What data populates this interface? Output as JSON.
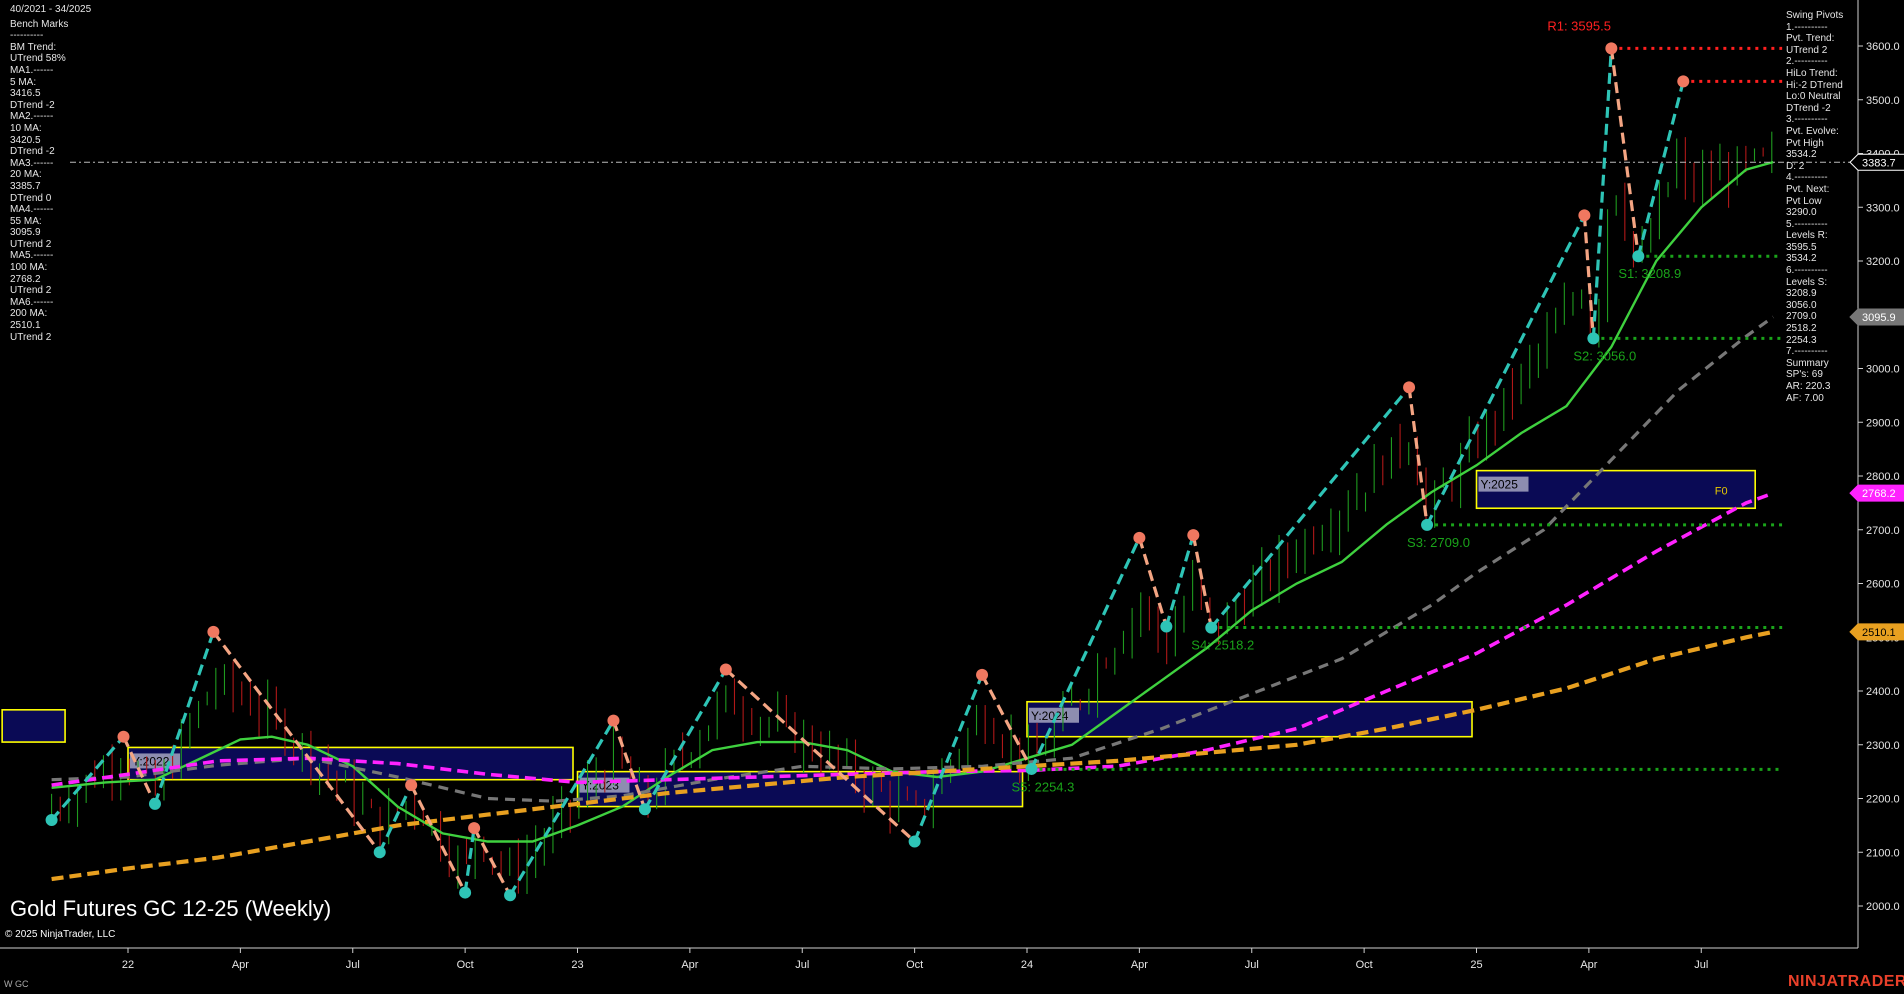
{
  "header": {
    "date_range": "40/2021 - 34/2025"
  },
  "title": "Gold Futures GC 12-25 (Weekly)",
  "copyright": "© 2025 NinjaTrader, LLC",
  "instrument": "W GC",
  "brand": "NINJATRADER",
  "left_panel": [
    "Bench Marks",
    "----------",
    "BM Trend:",
    "UTrend 58%",
    "MA1.------",
    "5 MA:",
    "3416.5",
    "DTrend -2",
    "MA2.------",
    "10 MA:",
    "3420.5",
    "DTrend -2",
    "MA3.------",
    "20 MA:",
    "3385.7",
    "DTrend 0",
    "MA4.------",
    "55 MA:",
    "3095.9",
    "UTrend 2",
    "MA5.------",
    "100 MA:",
    "2768.2",
    "UTrend 2",
    "MA6.------",
    "200 MA:",
    "2510.1",
    "UTrend 2"
  ],
  "right_panel": [
    "Swing Pivots",
    "1.----------",
    "Pvt. Trend:",
    "UTrend 2",
    "2.----------",
    "HiLo Trend:",
    "Hi:-2 DTrend",
    "Lo:0 Neutral",
    "DTrend -2",
    "3.----------",
    "Pvt. Evolve:",
    "Pvt High",
    "3534.2",
    "D: 2",
    "4.----------",
    "Pvt. Next:",
    "Pvt Low",
    "3290.0",
    "5.----------",
    "Levels R:",
    "3595.5",
    "3534.2",
    "6.----------",
    "Levels S:",
    "3208.9",
    "3056.0",
    "2709.0",
    "2518.2",
    "2254.3",
    "7.----------",
    "Summary",
    "SP's: 69",
    "AR: 220.3",
    "AF: 7.00"
  ],
  "colors": {
    "up_pivot": "#2ec4b6",
    "down_pivot": "#f4a583",
    "ma_green": "#3fd13f",
    "ma_grey": "#777777",
    "ma_magenta": "#ff22ff",
    "ma_orange": "#e8a020",
    "resistance": "#ff2020",
    "support": "#1aa31a",
    "year_box": "#ffff00",
    "year_fill": "#0a0a55",
    "brand": "#e8402a"
  },
  "chart_data": {
    "type": "line",
    "title": "Gold Futures GC 12-25 (Weekly)",
    "ylim": [
      1920,
      3660
    ],
    "y_ticks": [
      2000,
      2100,
      2200,
      2300,
      2400,
      2500,
      2600,
      2700,
      2800,
      2900,
      3000,
      3100,
      3200,
      3300,
      3400,
      3500,
      3600
    ],
    "y_tick_labels": [
      "2000.0",
      "2100.0",
      "2200.0",
      "2300.0",
      "2400.0",
      "2500.0",
      "2600.0",
      "2700.0",
      "2800.0",
      "2900.0",
      "3000.0",
      "3100.0",
      "3200.0",
      "3300.0",
      "3400.0",
      "3500.0",
      "3600.0"
    ],
    "x_range": [
      2021.83,
      2025.76
    ],
    "x_ticks": [
      {
        "label": "22",
        "t": 2022.0
      },
      {
        "label": "Apr",
        "t": 2022.25
      },
      {
        "label": "Jul",
        "t": 2022.5
      },
      {
        "label": "Oct",
        "t": 2022.75
      },
      {
        "label": "23",
        "t": 2023.0
      },
      {
        "label": "Apr",
        "t": 2023.25
      },
      {
        "label": "Jul",
        "t": 2023.5
      },
      {
        "label": "Oct",
        "t": 2023.75
      },
      {
        "label": "24",
        "t": 2024.0
      },
      {
        "label": "Apr",
        "t": 2024.25
      },
      {
        "label": "Jul",
        "t": 2024.5
      },
      {
        "label": "Oct",
        "t": 2024.75
      },
      {
        "label": "25",
        "t": 2025.0
      },
      {
        "label": "Apr",
        "t": 2025.25
      },
      {
        "label": "Jul",
        "t": 2025.5
      }
    ],
    "price_tags": [
      {
        "value": 3383.7,
        "label": "3383.7",
        "bg": "#000000",
        "fg": "#ffffff",
        "border": "#ffffff"
      },
      {
        "value": 3095.9,
        "label": "3095.9",
        "bg": "#777777",
        "fg": "#ffffff",
        "border": "#777777"
      },
      {
        "value": 2768.2,
        "label": "2768.2",
        "bg": "#ff22ff",
        "fg": "#ffffff",
        "border": "#ff22ff"
      },
      {
        "value": 2510.1,
        "label": "2510.1",
        "bg": "#e8a020",
        "fg": "#000000",
        "border": "#e8a020"
      }
    ],
    "current_price": 3383.7,
    "swing_pivots": [
      {
        "t": 2021.83,
        "v": 2160,
        "kind": "low"
      },
      {
        "t": 2021.99,
        "v": 2315,
        "kind": "high"
      },
      {
        "t": 2022.06,
        "v": 2190,
        "kind": "low"
      },
      {
        "t": 2022.19,
        "v": 2510,
        "kind": "high"
      },
      {
        "t": 2022.56,
        "v": 2100,
        "kind": "low"
      },
      {
        "t": 2022.63,
        "v": 2225,
        "kind": "high"
      },
      {
        "t": 2022.75,
        "v": 2025,
        "kind": "low"
      },
      {
        "t": 2022.77,
        "v": 2145,
        "kind": "high"
      },
      {
        "t": 2022.85,
        "v": 2020,
        "kind": "low"
      },
      {
        "t": 2023.08,
        "v": 2345,
        "kind": "high"
      },
      {
        "t": 2023.15,
        "v": 2180,
        "kind": "low"
      },
      {
        "t": 2023.33,
        "v": 2440,
        "kind": "high"
      },
      {
        "t": 2023.75,
        "v": 2120,
        "kind": "low"
      },
      {
        "t": 2023.9,
        "v": 2430,
        "kind": "high"
      },
      {
        "t": 2024.01,
        "v": 2255,
        "kind": "low"
      },
      {
        "t": 2024.25,
        "v": 2685,
        "kind": "high"
      },
      {
        "t": 2024.31,
        "v": 2520,
        "kind": "low"
      },
      {
        "t": 2024.37,
        "v": 2690,
        "kind": "high"
      },
      {
        "t": 2024.41,
        "v": 2518,
        "kind": "low"
      },
      {
        "t": 2024.85,
        "v": 2965,
        "kind": "high"
      },
      {
        "t": 2024.89,
        "v": 2709,
        "kind": "low"
      },
      {
        "t": 2025.24,
        "v": 3285,
        "kind": "high"
      },
      {
        "t": 2025.26,
        "v": 3056,
        "kind": "low"
      },
      {
        "t": 2025.3,
        "v": 3595.5,
        "kind": "high"
      },
      {
        "t": 2025.36,
        "v": 3208.9,
        "kind": "low"
      },
      {
        "t": 2025.46,
        "v": 3534.2,
        "kind": "high"
      }
    ],
    "moving_averages": [
      {
        "name": "20 MA",
        "color": "#3fd13f",
        "width": 2.4,
        "dash": "",
        "points": [
          [
            2021.83,
            2220
          ],
          [
            2021.95,
            2230
          ],
          [
            2022.06,
            2235
          ],
          [
            2022.15,
            2270
          ],
          [
            2022.25,
            2310
          ],
          [
            2022.32,
            2315
          ],
          [
            2022.4,
            2300
          ],
          [
            2022.5,
            2260
          ],
          [
            2022.6,
            2185
          ],
          [
            2022.7,
            2135
          ],
          [
            2022.8,
            2120
          ],
          [
            2022.9,
            2120
          ],
          [
            2023.0,
            2150
          ],
          [
            2023.1,
            2185
          ],
          [
            2023.2,
            2240
          ],
          [
            2023.3,
            2290
          ],
          [
            2023.4,
            2305
          ],
          [
            2023.5,
            2305
          ],
          [
            2023.6,
            2290
          ],
          [
            2023.7,
            2250
          ],
          [
            2023.8,
            2240
          ],
          [
            2023.9,
            2250
          ],
          [
            2024.0,
            2275
          ],
          [
            2024.1,
            2300
          ],
          [
            2024.2,
            2360
          ],
          [
            2024.3,
            2420
          ],
          [
            2024.4,
            2480
          ],
          [
            2024.5,
            2550
          ],
          [
            2024.6,
            2600
          ],
          [
            2024.7,
            2640
          ],
          [
            2024.8,
            2710
          ],
          [
            2024.9,
            2770
          ],
          [
            2025.0,
            2820
          ],
          [
            2025.1,
            2880
          ],
          [
            2025.2,
            2930
          ],
          [
            2025.3,
            3040
          ],
          [
            2025.4,
            3200
          ],
          [
            2025.5,
            3300
          ],
          [
            2025.6,
            3370
          ],
          [
            2025.66,
            3384
          ]
        ]
      },
      {
        "name": "55 MA",
        "color": "#777777",
        "width": 3.2,
        "dash": "10,7",
        "points": [
          [
            2021.83,
            2235
          ],
          [
            2022.0,
            2240
          ],
          [
            2022.2,
            2262
          ],
          [
            2022.4,
            2275
          ],
          [
            2022.6,
            2240
          ],
          [
            2022.8,
            2200
          ],
          [
            2022.95,
            2195
          ],
          [
            2023.1,
            2205
          ],
          [
            2023.3,
            2235
          ],
          [
            2023.5,
            2260
          ],
          [
            2023.7,
            2255
          ],
          [
            2023.9,
            2260
          ],
          [
            2024.1,
            2275
          ],
          [
            2024.3,
            2330
          ],
          [
            2024.5,
            2395
          ],
          [
            2024.7,
            2460
          ],
          [
            2024.9,
            2560
          ],
          [
            2025.0,
            2620
          ],
          [
            2025.15,
            2700
          ],
          [
            2025.3,
            2830
          ],
          [
            2025.45,
            2960
          ],
          [
            2025.6,
            3060
          ],
          [
            2025.66,
            3096
          ]
        ]
      },
      {
        "name": "100 MA",
        "color": "#ff22ff",
        "width": 3.6,
        "dash": "11,6",
        "points": [
          [
            2021.83,
            2225
          ],
          [
            2022.0,
            2245
          ],
          [
            2022.2,
            2270
          ],
          [
            2022.4,
            2275
          ],
          [
            2022.6,
            2265
          ],
          [
            2022.8,
            2245
          ],
          [
            2023.0,
            2230
          ],
          [
            2023.2,
            2235
          ],
          [
            2023.4,
            2240
          ],
          [
            2023.6,
            2245
          ],
          [
            2023.8,
            2250
          ],
          [
            2024.0,
            2252
          ],
          [
            2024.2,
            2260
          ],
          [
            2024.4,
            2290
          ],
          [
            2024.6,
            2330
          ],
          [
            2024.8,
            2400
          ],
          [
            2025.0,
            2470
          ],
          [
            2025.2,
            2560
          ],
          [
            2025.4,
            2660
          ],
          [
            2025.6,
            2750
          ],
          [
            2025.66,
            2768
          ]
        ]
      },
      {
        "name": "200 MA",
        "color": "#e8a020",
        "width": 4.2,
        "dash": "12,6",
        "points": [
          [
            2021.83,
            2050
          ],
          [
            2022.0,
            2070
          ],
          [
            2022.2,
            2090
          ],
          [
            2022.4,
            2120
          ],
          [
            2022.6,
            2150
          ],
          [
            2022.8,
            2170
          ],
          [
            2023.0,
            2190
          ],
          [
            2023.2,
            2210
          ],
          [
            2023.4,
            2225
          ],
          [
            2023.6,
            2240
          ],
          [
            2023.8,
            2250
          ],
          [
            2024.0,
            2260
          ],
          [
            2024.2,
            2270
          ],
          [
            2024.4,
            2285
          ],
          [
            2024.6,
            2300
          ],
          [
            2024.8,
            2330
          ],
          [
            2025.0,
            2365
          ],
          [
            2025.2,
            2405
          ],
          [
            2025.4,
            2460
          ],
          [
            2025.6,
            2500
          ],
          [
            2025.66,
            2510
          ]
        ]
      }
    ],
    "resistance_lines": [
      {
        "label": "R1: 3595.5",
        "value": 3595.5,
        "from": 2025.3
      },
      {
        "label": "",
        "value": 3534.2,
        "from": 2025.46
      }
    ],
    "support_lines": [
      {
        "label": "S1: 3208.9",
        "value": 3208.9,
        "from": 2025.36
      },
      {
        "label": "S2: 3056.0",
        "value": 3056.0,
        "from": 2025.26
      },
      {
        "label": "S3: 2709.0",
        "value": 2709.0,
        "from": 2024.89
      },
      {
        "label": "S4: 2518.2",
        "value": 2518.2,
        "from": 2024.41
      },
      {
        "label": "S5: 2254.3",
        "value": 2254.3,
        "from": 2024.01
      }
    ],
    "year_boxes": [
      {
        "label": "",
        "t0": 2021.72,
        "t1": 2021.86,
        "y0": 2305,
        "y1": 2365
      },
      {
        "label": "Y:2022",
        "t0": 2022.0,
        "t1": 2022.99,
        "y0": 2235,
        "y1": 2295
      },
      {
        "label": "Y:2023",
        "t0": 2023.0,
        "t1": 2023.99,
        "y0": 2185,
        "y1": 2250
      },
      {
        "label": "Y:2024",
        "t0": 2024.0,
        "t1": 2024.99,
        "y0": 2315,
        "y1": 2380
      },
      {
        "label": "Y:2025",
        "t0": 2025.0,
        "t1": 2025.62,
        "y0": 2740,
        "y1": 2810
      }
    ],
    "annotations": [
      {
        "text": "F0",
        "t": 2025.53,
        "v": 2766
      }
    ]
  }
}
